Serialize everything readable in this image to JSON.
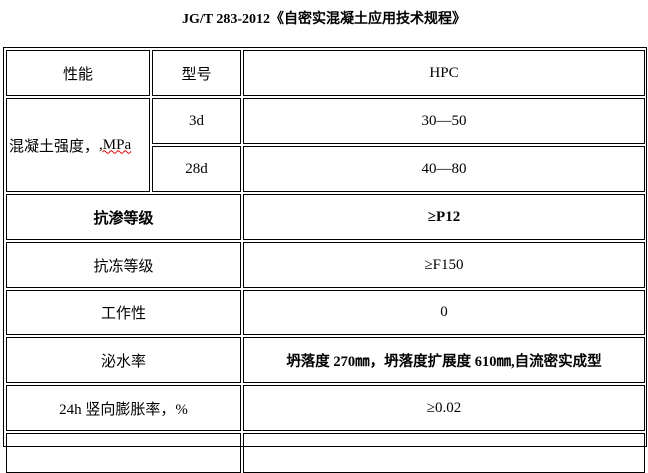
{
  "title": "JG/T 283-2012《自密实混凝土应用技术规程》",
  "header": {
    "col1": "性能",
    "col2": "型号",
    "col3": "HPC"
  },
  "strength": {
    "label": "混凝土强度，",
    "unit": ",MPa",
    "rows": [
      {
        "age": "3d",
        "value": "30—50"
      },
      {
        "age": "28d",
        "value": "40—80"
      }
    ]
  },
  "rows": [
    {
      "label": "抗渗等级",
      "value": "≥P12",
      "bold": true
    },
    {
      "label": "抗冻等级",
      "value": "≥F150"
    },
    {
      "label": "工作性",
      "value": "0"
    },
    {
      "label": "泌水率",
      "value": "坍落度 270㎜，坍落度扩展度 610㎜,自流密实成型",
      "value_bold": true
    },
    {
      "label": "24h 竖向膨胀率，%",
      "value": "≥0.02"
    }
  ]
}
